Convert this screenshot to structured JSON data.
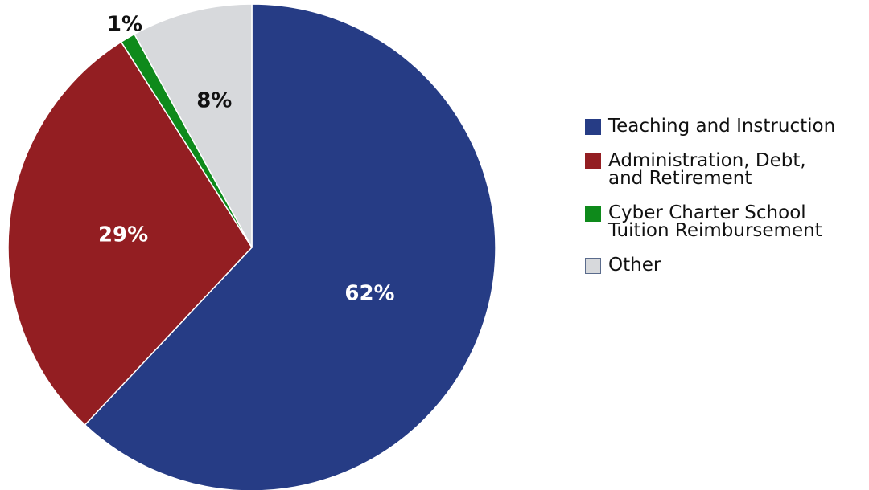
{
  "chart_data": {
    "type": "pie",
    "slices": [
      {
        "label": "Teaching and Instruction",
        "value": 62,
        "display": "62%",
        "color": "#263C85"
      },
      {
        "label": "Administration, Debt,\nand Retirement",
        "value": 29,
        "display": "29%",
        "color": "#931E22"
      },
      {
        "label": "Cyber Charter School\nTuition Reimbursement",
        "value": 1,
        "display": "1%",
        "color": "#0E8A1B"
      },
      {
        "label": "Other",
        "value": 8,
        "display": "8%",
        "color": "#D7D9DC"
      }
    ],
    "start": "12 o'clock",
    "direction": "clockwise",
    "legend_position": "right"
  }
}
